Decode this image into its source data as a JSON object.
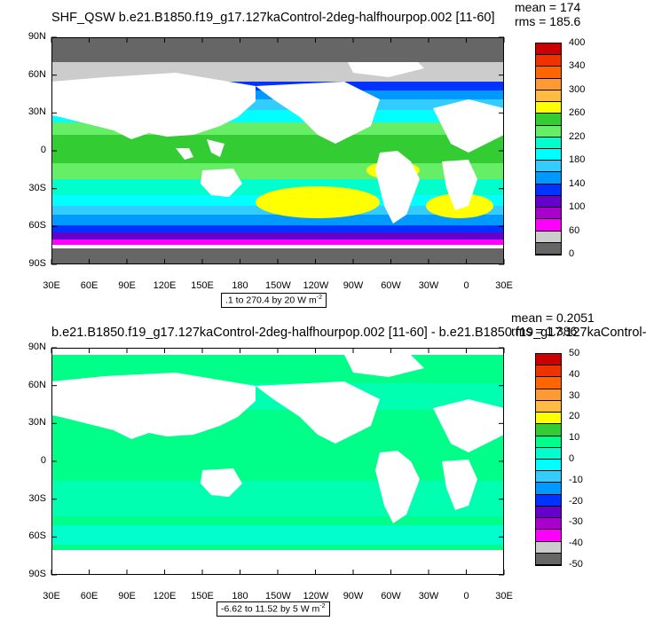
{
  "panels": [
    {
      "title": "SHF_QSW b.e21.B1850.f19_g17.127kaControl-2deg-halfhourpop.002 [11-60]",
      "mean_label": "mean = 174",
      "rms_label": "rms = 185.6",
      "range_label": ".1 to 270.4 by 20",
      "units": "W m",
      "units_exp": "-2",
      "colorbar_labels": [
        "400",
        "340",
        "300",
        "260",
        "220",
        "180",
        "140",
        "100",
        "60",
        "0"
      ],
      "colorbar_colors": [
        "#cc0000",
        "#ee3300",
        "#ff6600",
        "#ff9933",
        "#ffbb44",
        "#ffff00",
        "#33cc33",
        "#66ee66",
        "#00ffcc",
        "#00ffff",
        "#33ccff",
        "#0099ff",
        "#0033ff",
        "#6600cc",
        "#aa00cc",
        "#ff00ff",
        "#cccccc",
        "#666666"
      ],
      "land_color": "#ffffff",
      "ocean_fill": "#33ccff"
    },
    {
      "title": "b.e21.B1850.f19_g17.127kaControl-2deg-halfhourpop.002 [11-60] - b.e21.B1850.f19_g17.127kaControl-",
      "mean_label": "mean = 0.2051",
      "rms_label": "rms = 1.386",
      "range_label": "-6.62 to 11.52 by 5",
      "units": "W m",
      "units_exp": "-2",
      "colorbar_labels": [
        "50",
        "40",
        "30",
        "20",
        "10",
        "0",
        "-10",
        "-20",
        "-30",
        "-40",
        "-50"
      ],
      "colorbar_colors": [
        "#cc0000",
        "#ee3300",
        "#ff6600",
        "#ff9933",
        "#ffbb44",
        "#ffff00",
        "#33cc33",
        "#00ff88",
        "#00ffcc",
        "#00ffff",
        "#33ccff",
        "#0099ff",
        "#0033ff",
        "#6600cc",
        "#aa00cc",
        "#ff00ff",
        "#cccccc",
        "#666666"
      ],
      "land_color": "#ffffff",
      "ocean_fill": "#00ff88"
    }
  ],
  "axes": {
    "lat_labels": [
      "90N",
      "60N",
      "30N",
      "0",
      "30S",
      "60S",
      "90S"
    ],
    "lon_labels": [
      "30E",
      "60E",
      "90E",
      "120E",
      "150E",
      "180",
      "150W",
      "120W",
      "90W",
      "60W",
      "30W",
      "0",
      "30E"
    ]
  }
}
